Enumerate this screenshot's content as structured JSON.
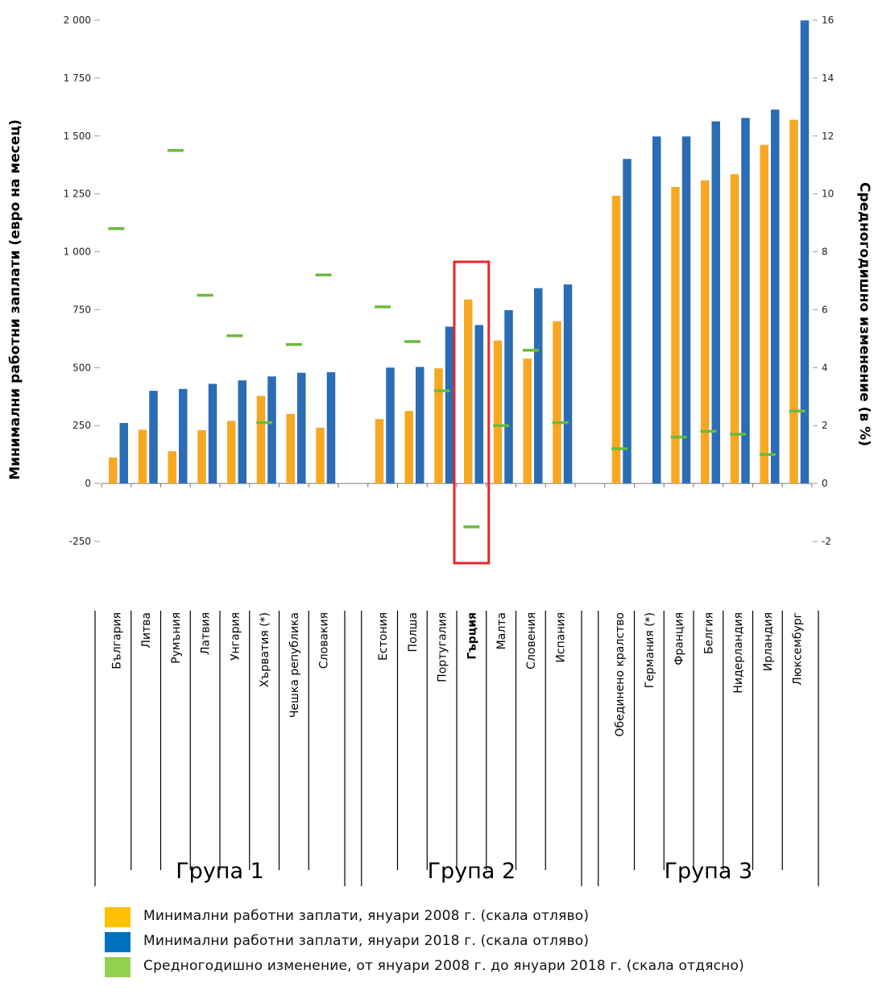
{
  "chart_data": {
    "type": "bar",
    "ylabel_left": "Минимални работни заплати (евро на месец)",
    "ylabel_right": "Средногодишно изменение (в %)",
    "ylim_left": [
      -250,
      2000
    ],
    "ylim_right": [
      -2,
      16
    ],
    "yticks_left": [
      "-250",
      "0",
      "250",
      "500",
      "750",
      "1 000",
      "1 250",
      "1 500",
      "1 750",
      "2 000"
    ],
    "yticks_right": [
      "-2",
      "0",
      "2",
      "4",
      "6",
      "8",
      "10",
      "12",
      "14",
      "16"
    ],
    "categories": [
      "България",
      "Литва",
      "Румъния",
      "Латвия",
      "Унгария",
      "Хърватия (*)",
      "Чешка република",
      "Словакия",
      "Естония",
      "Полша",
      "Португалия",
      "Гърция",
      "Малта",
      "Словения",
      "Испания",
      "Обединено кралство",
      "Германия (*)",
      "Франция",
      "Белгия",
      "Нидерландия",
      "Ирландия",
      "Люксембург"
    ],
    "groups": [
      {
        "label": "Група 1",
        "size": 8
      },
      {
        "label": "Група 2",
        "size": 7
      },
      {
        "label": "Група 3",
        "size": 7
      }
    ],
    "highlight": "Гърция",
    "series": [
      {
        "name": "Минимални работни заплати, януари 2008 г. (скала отляво)",
        "axis": "left",
        "color": "#F7A823",
        "values": [
          112,
          232,
          139,
          230,
          270,
          378,
          300,
          241,
          278,
          313,
          497,
          794,
          617,
          539,
          700,
          1242,
          null,
          1280,
          1309,
          1335,
          1462,
          1570
        ]
      },
      {
        "name": "Минимални работни заплати, януари 2018 г. (скала отляво)",
        "axis": "left",
        "color": "#2B6CB5",
        "values": [
          261,
          400,
          408,
          430,
          445,
          462,
          478,
          480,
          500,
          503,
          677,
          684,
          748,
          843,
          859,
          1401,
          1498,
          1498,
          1563,
          1578,
          1614,
          1999
        ]
      },
      {
        "name": "Средногодишно изменение, от януари 2008 г. до януари 2018 г. (скала отдясно)",
        "axis": "right",
        "color": "#6BBB3C",
        "values": [
          8.8,
          null,
          11.5,
          6.5,
          5.1,
          2.1,
          4.8,
          7.2,
          6.1,
          4.9,
          3.2,
          -1.5,
          2.0,
          4.6,
          2.1,
          1.2,
          null,
          1.6,
          1.8,
          1.7,
          1.0,
          2.5
        ]
      }
    ],
    "legend_position": "bottom",
    "grid": false
  },
  "legend": [
    {
      "label": "Минимални работни заплати, януари 2008 г. (скала отляво)",
      "color": "#FFC000"
    },
    {
      "label": "Минимални работни заплати, януари 2018 г. (скала отляво)",
      "color": "#0070C0"
    },
    {
      "label": "Средногодишно изменение, от януари 2008 г. до януари 2018 г. (скала отдясно)",
      "color": "#92D050"
    }
  ]
}
